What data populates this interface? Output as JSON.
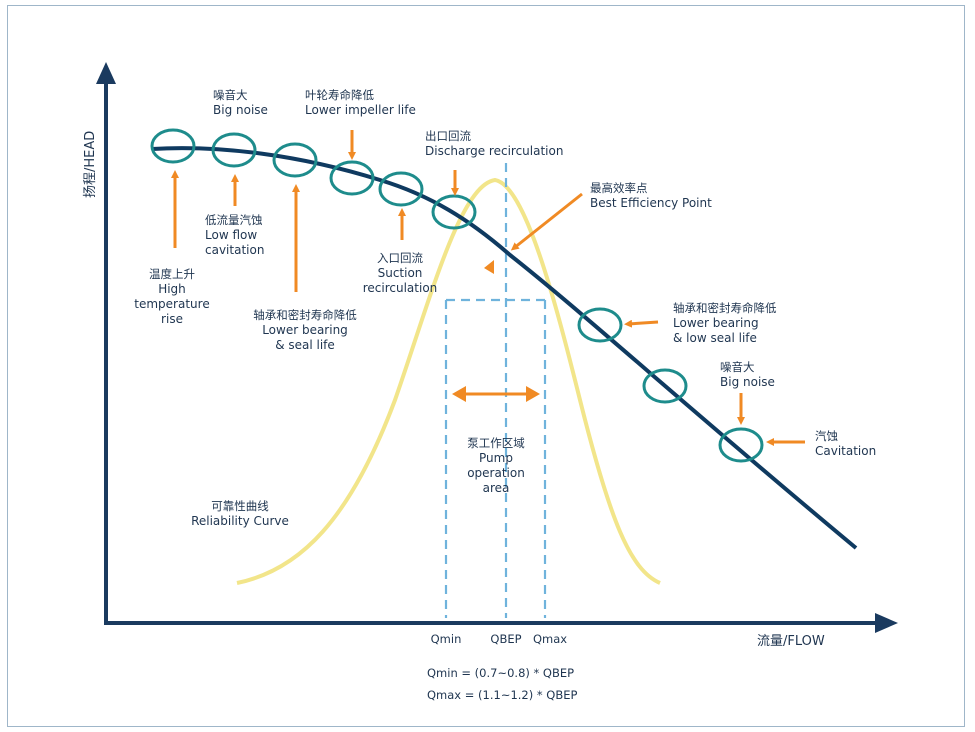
{
  "axes": {
    "y_label": "扬程/HEAD",
    "x_label": "流量/FLOW"
  },
  "annotations": {
    "high_temp": {
      "zh": "温度上升",
      "en1": "High",
      "en2": "temperature",
      "en3": "rise"
    },
    "low_flow_cav": {
      "zh": "低流量汽蚀",
      "en1": "Low flow",
      "en2": "cavitation"
    },
    "big_noise_left": {
      "zh": "噪音大",
      "en": "Big noise"
    },
    "lower_impeller": {
      "zh": "叶轮寿命降低",
      "en": "Lower  impeller life"
    },
    "lower_bearing_left": {
      "zh": "轴承和密封寿命降低",
      "en1": "Lower bearing",
      "en2": "& seal life"
    },
    "discharge_recirc": {
      "zh": "出口回流",
      "en": "Discharge recirculation"
    },
    "suction_recirc": {
      "zh": "入口回流",
      "en1": "Suction",
      "en2": "recirculation"
    },
    "bep": {
      "zh": "最高效率点",
      "en": "Best Efficiency Point"
    },
    "lower_bearing_right": {
      "zh": "轴承和密封寿命降低",
      "en1": "Lower bearing",
      "en2": "& low seal life"
    },
    "big_noise_right": {
      "zh": "噪音大",
      "en": "Big noise"
    },
    "cavitation": {
      "zh": "汽蚀",
      "en": "Cavitation"
    },
    "pump_area": {
      "zh": "泵工作区域",
      "en1": "Pump",
      "en2": "operation",
      "en3": "area"
    },
    "reliability": {
      "zh": "可靠性曲线",
      "en": "Reliability Curve"
    }
  },
  "ticks": {
    "qmin": "Qmin",
    "qbep": "QBEP",
    "qmax": "Qmax"
  },
  "formulas": {
    "qmin": "Qmin = (0.7~0.8) * QBEP",
    "qmax": "Qmax = (1.1~1.2) * QBEP"
  },
  "colors": {
    "axis": "#1a3a5f",
    "curve": "#0f3a60",
    "circle": "#1e8c8c",
    "arrow": "#f08a24",
    "reliability": "#f2e58a",
    "dashed": "#6fb3dc"
  }
}
